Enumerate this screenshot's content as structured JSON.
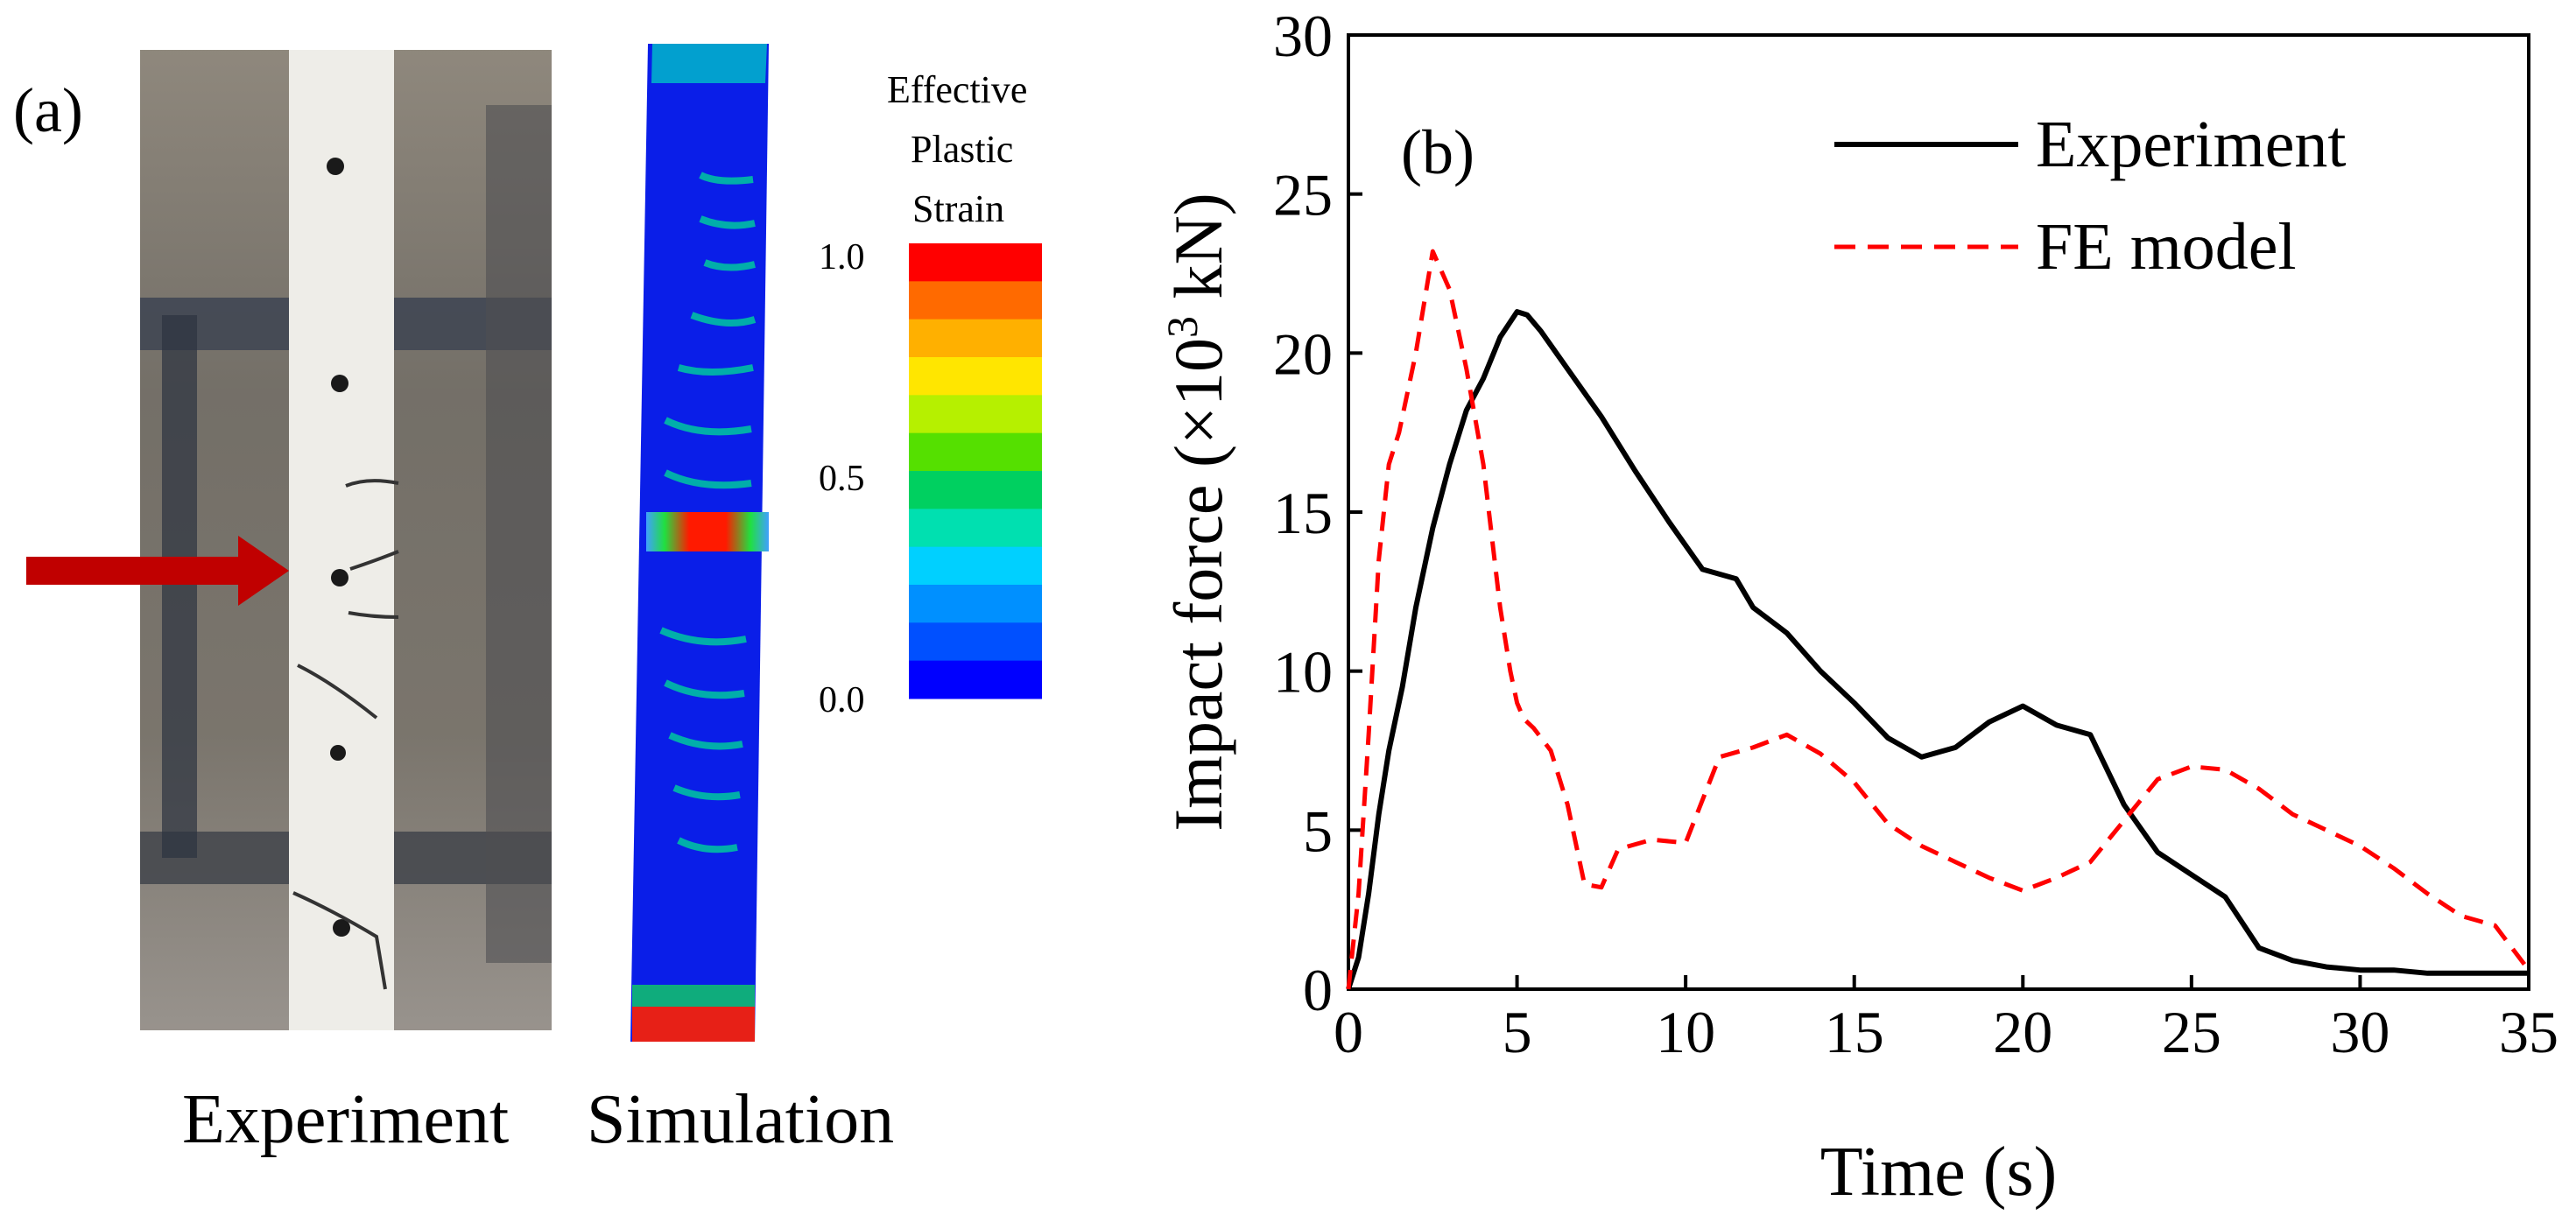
{
  "panel_a": {
    "label": "(a)",
    "caption_experiment": "Experiment",
    "caption_simulation": "Simulation",
    "legend": {
      "title_lines": [
        "Effective",
        "Plastic",
        "Strain"
      ],
      "tick_labels": [
        "1.0",
        "0.5",
        "0.0"
      ],
      "bands": [
        "#ff0000",
        "#ff6a00",
        "#ffb000",
        "#ffe600",
        "#b6f000",
        "#55e000",
        "#00d060",
        "#00e0b0",
        "#00d0ff",
        "#0090ff",
        "#0050ff",
        "#0000ff"
      ]
    },
    "colors": {
      "arrow": "#c00000",
      "column": "#eeede8",
      "background": "#8d867b",
      "sim_base": "#0a1ee8"
    }
  },
  "chart_data": {
    "type": "line",
    "panel_label": "(b)",
    "xlabel": "Time (s)",
    "ylabel": "Impact force (×10³ kN)",
    "ylabel_parts": [
      "Impact force (×10",
      "3",
      " kN)"
    ],
    "xlim": [
      0,
      35
    ],
    "ylim": [
      0,
      30
    ],
    "xticks": [
      0,
      5,
      10,
      15,
      20,
      25,
      30,
      35
    ],
    "yticks": [
      0,
      5,
      10,
      15,
      20,
      25,
      30
    ],
    "legend_position": "top-right",
    "series": [
      {
        "name": "Experiment",
        "style": "solid",
        "color": "#000000",
        "x": [
          0,
          0.3,
          0.6,
          0.9,
          1.2,
          1.6,
          2.0,
          2.5,
          3.0,
          3.5,
          4.0,
          4.5,
          5.0,
          5.3,
          5.7,
          6.5,
          7.5,
          8.5,
          9.5,
          10.5,
          11.5,
          12.0,
          13.0,
          14.0,
          15.0,
          16.0,
          17.0,
          18.0,
          19.0,
          20.0,
          21.0,
          22.0,
          23.0,
          24.0,
          25.0,
          26.0,
          27.0,
          28.0,
          29.0,
          30.0,
          31.0,
          32.0,
          33.0,
          34.0,
          35.0
        ],
        "y": [
          0,
          1.0,
          3.0,
          5.5,
          7.5,
          9.5,
          12.0,
          14.5,
          16.5,
          18.2,
          19.2,
          20.5,
          21.3,
          21.2,
          20.7,
          19.5,
          18.0,
          16.3,
          14.7,
          13.2,
          12.9,
          12.0,
          11.2,
          10.0,
          9.0,
          7.9,
          7.3,
          7.6,
          8.4,
          8.9,
          8.3,
          8.0,
          5.8,
          4.3,
          3.6,
          2.9,
          1.3,
          0.9,
          0.7,
          0.6,
          0.6,
          0.5,
          0.5,
          0.5,
          0.5
        ]
      },
      {
        "name": "FE model",
        "style": "dashed",
        "color": "#ff0000",
        "x": [
          0,
          0.3,
          0.6,
          0.9,
          1.2,
          1.5,
          2.0,
          2.5,
          3.0,
          3.5,
          4.0,
          4.5,
          4.8,
          5.0,
          5.2,
          5.5,
          6.0,
          6.5,
          7.0,
          7.5,
          8.0,
          9.0,
          10.0,
          11.0,
          12.0,
          13.0,
          14.0,
          15.0,
          16.0,
          17.0,
          18.0,
          19.0,
          20.0,
          21.0,
          22.0,
          23.0,
          24.0,
          25.0,
          26.0,
          27.0,
          28.0,
          29.0,
          30.0,
          31.0,
          32.0,
          33.0,
          34.0,
          35.0
        ],
        "y": [
          0,
          3.0,
          8.0,
          13.5,
          16.5,
          17.5,
          20.0,
          23.2,
          22.0,
          19.5,
          16.5,
          12.0,
          10.0,
          9.0,
          8.5,
          8.2,
          7.5,
          5.8,
          3.3,
          3.2,
          4.4,
          4.7,
          4.6,
          7.3,
          7.6,
          8.0,
          7.4,
          6.5,
          5.2,
          4.5,
          4.0,
          3.5,
          3.1,
          3.5,
          4.0,
          5.3,
          6.6,
          7.0,
          6.9,
          6.3,
          5.5,
          5.0,
          4.5,
          3.8,
          3.0,
          2.3,
          2.0,
          0.6
        ]
      }
    ]
  }
}
